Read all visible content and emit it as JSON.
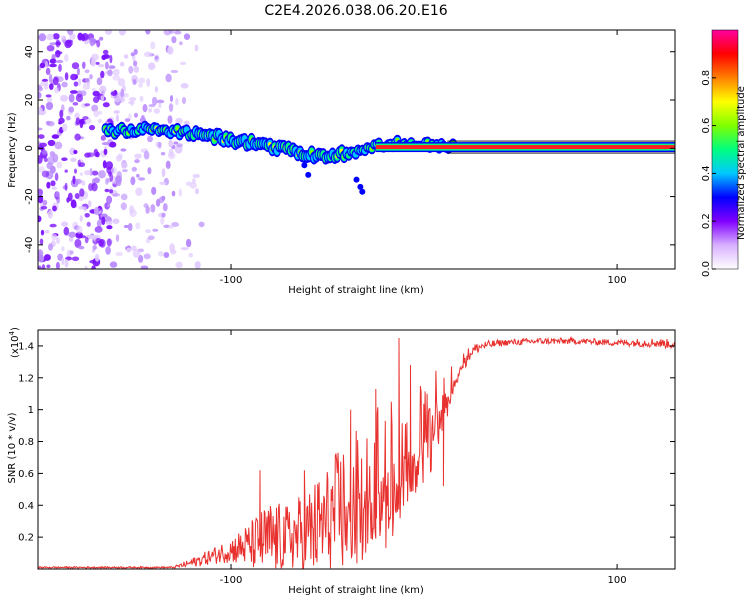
{
  "chart_data": [
    {
      "type": "heatmap",
      "title": "C2E4.2026.038.06.20.E16",
      "xlabel": "Height of straight line (km)",
      "ylabel": "Frequency (Hz)",
      "xlim": [
        -200,
        130
      ],
      "ylim": [
        -50,
        49
      ],
      "xticks": [
        -100,
        100
      ],
      "xtick_labels": [
        "-100",
        "100"
      ],
      "yticks": [
        -40,
        -20,
        0,
        20,
        40
      ],
      "ytick_labels": [
        "-40",
        "-20",
        "0",
        "20",
        "40"
      ],
      "colorbar": {
        "label": "Normalized spectral amplitude",
        "range": [
          0,
          1
        ],
        "ticks": [
          0,
          0.2,
          0.4,
          0.6,
          0.8
        ],
        "tick_labels": [
          "0.0",
          "0.2",
          "0.4",
          "0.6",
          "0.8"
        ],
        "colors": [
          "#ffffff",
          "#8000ff",
          "#0000ff",
          "#00ffff",
          "#00ff00",
          "#ffff00",
          "#ff0000",
          "#ff00ff"
        ]
      },
      "ridge": {
        "description_points_x": [
          -165,
          -140,
          -110,
          -80,
          -55,
          -35,
          -20,
          -5,
          10,
          30,
          80,
          130
        ],
        "description_points_y": [
          7,
          8,
          5,
          1,
          -3,
          -2,
          2,
          2,
          0.5,
          0.5,
          0.5,
          0.5
        ]
      }
    },
    {
      "type": "line",
      "xlabel": "Height of straight line (km)",
      "ylabel": "SNR (10 * v/v)",
      "y_scale_label": "(x10",
      "y_scale_exp": "4",
      "y_scale_close": ")",
      "xlim": [
        -200,
        130
      ],
      "ylim": [
        0,
        1.5
      ],
      "xticks": [
        -100,
        100
      ],
      "xtick_labels": [
        "-100",
        "100"
      ],
      "yticks": [
        0.2,
        0.4,
        0.6,
        0.8,
        1.0,
        1.2,
        1.4
      ],
      "ytick_labels": [
        "0.2",
        "0.4",
        "0.6",
        "0.8",
        "1",
        "1.2",
        "1.4"
      ],
      "series": [
        {
          "name": "SNR",
          "color": "#e8312e",
          "envelope_x": [
            -200,
            -130,
            -120,
            -110,
            -100,
            -90,
            -80,
            -70,
            -60,
            -50,
            -40,
            -30,
            -20,
            -10,
            0,
            5,
            10,
            15,
            20,
            25,
            30,
            40,
            60,
            80,
            100,
            120,
            130
          ],
          "envelope_y": [
            0.01,
            0.01,
            0.04,
            0.08,
            0.12,
            0.15,
            0.18,
            0.2,
            0.22,
            0.3,
            0.4,
            0.5,
            0.6,
            0.7,
            0.82,
            0.95,
            1.05,
            1.18,
            1.3,
            1.37,
            1.4,
            1.42,
            1.43,
            1.43,
            1.42,
            1.42,
            1.41
          ],
          "noise_amp": [
            0.005,
            0.005,
            0.03,
            0.05,
            0.08,
            0.15,
            0.25,
            0.2,
            0.3,
            0.35,
            0.45,
            0.45,
            0.5,
            0.4,
            0.35,
            0.3,
            0.25,
            0.1,
            0.06,
            0.04,
            0.03,
            0.02,
            0.02,
            0.02,
            0.02,
            0.03,
            0.03
          ],
          "spikes_x": [
            -85,
            -62,
            -38,
            -25,
            -13,
            -7,
            10
          ],
          "spikes_y": [
            0.62,
            0.62,
            1.0,
            1.13,
            1.45,
            1.28,
            0.52
          ]
        }
      ]
    }
  ]
}
